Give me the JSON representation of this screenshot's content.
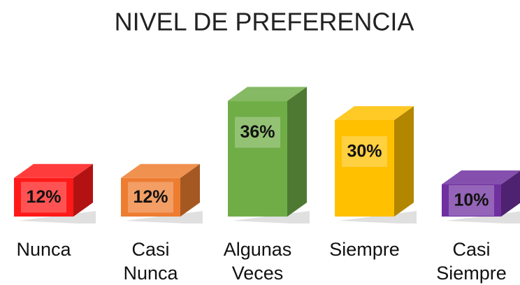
{
  "chart_data": {
    "type": "bar3d",
    "title": "NIVEL DE PREFERENCIA",
    "categories": [
      "Nunca",
      "Casi Nunca",
      "Algunas Veces",
      "Siempre",
      "Casi Siempre"
    ],
    "values": [
      12,
      12,
      36,
      30,
      10
    ],
    "value_labels": [
      "12%",
      "12%",
      "36%",
      "30%",
      "10%"
    ],
    "colors": [
      "#ff1a1a",
      "#ed7d31",
      "#70ad47",
      "#ffc000",
      "#7030a0"
    ]
  }
}
